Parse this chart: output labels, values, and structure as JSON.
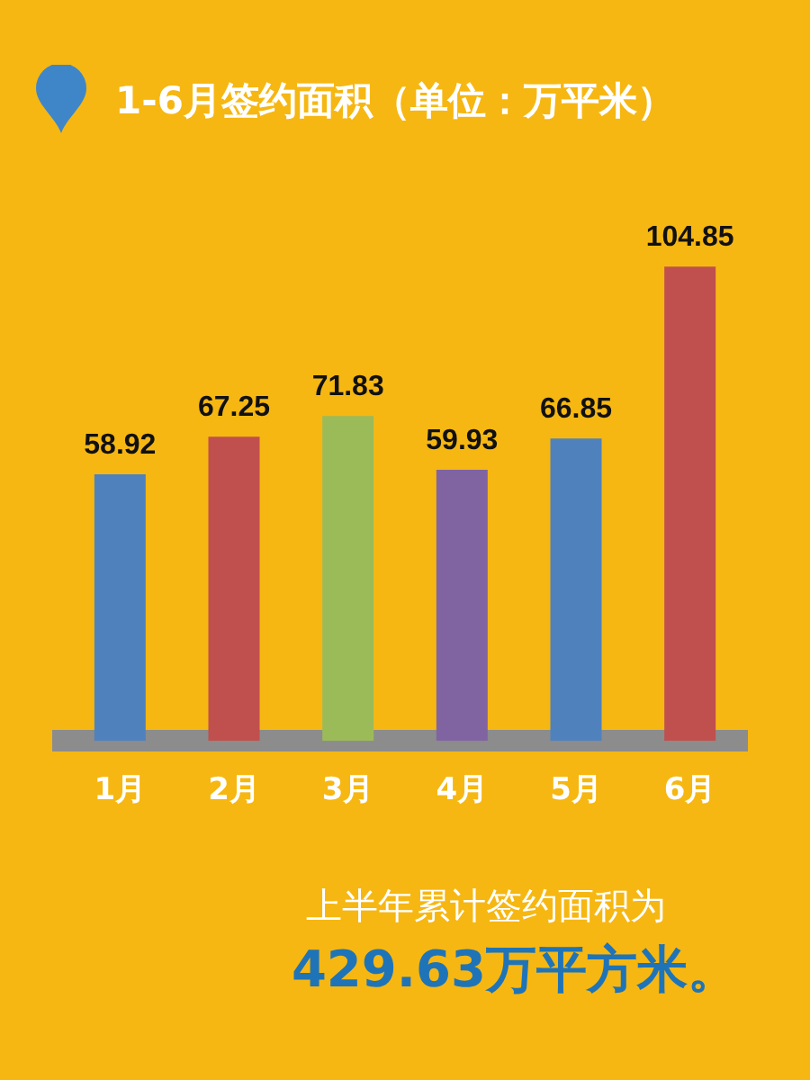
{
  "chart_data": {
    "type": "bar",
    "title": "1-6月签约面积（单位：万平米）",
    "categories": [
      "1月",
      "2月",
      "3月",
      "4月",
      "5月",
      "6月"
    ],
    "values": [
      58.92,
      67.25,
      71.83,
      59.93,
      66.85,
      104.85
    ],
    "colors": [
      "#4f81bd",
      "#c0504d",
      "#9bbb59",
      "#8064a2",
      "#4f81bd",
      "#c0504d"
    ],
    "data_labels": true,
    "annotations": [
      "上半年累计签约面积为",
      "429.63万平方米。"
    ]
  }
}
